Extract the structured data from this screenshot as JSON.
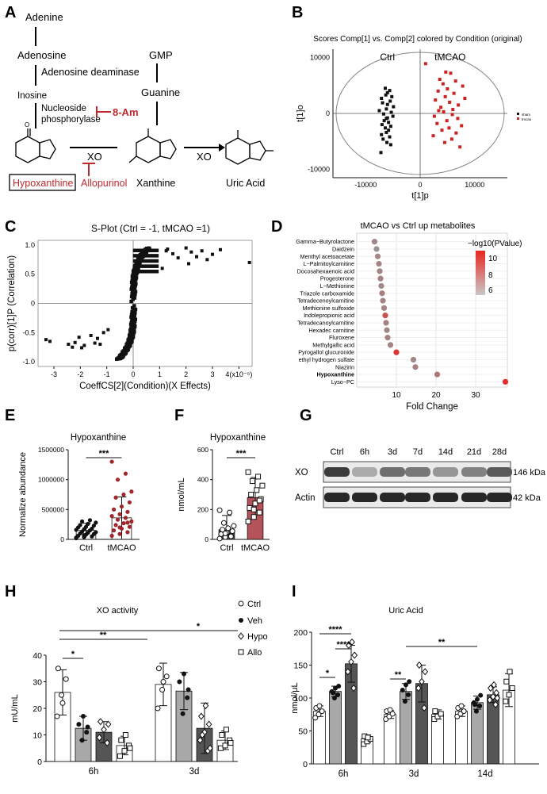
{
  "panel_labels": {
    "a": "A",
    "b": "B",
    "c": "C",
    "d": "D",
    "e": "E",
    "f": "F",
    "g": "G",
    "h": "H",
    "i": "I"
  },
  "pathway": {
    "adenine": "Adenine",
    "adenosine": "Adenosine",
    "adenosine_deaminase": "Adenosine deaminase",
    "gmp": "GMP",
    "inosine": "Inosine",
    "nucleoside": "Nucleoside",
    "phosphorylase": "phosphorylase",
    "guanine": "Guanine",
    "inhibitor_8am": "8-Am",
    "xo1": "XO",
    "xo2": "XO",
    "hypoxanthine": "Hypoxanthine",
    "allopurinol": "Allopurinol",
    "xanthine": "Xanthine",
    "uric_acid": "Uric Acid",
    "accent_color": "#c0282d"
  },
  "colors": {
    "ctrl": "#111111",
    "tmcao": "#cc2222",
    "bar_dark": "#555555",
    "bar_tmcao": "#b5525a",
    "bar_mid": "#a8a8a8",
    "bar_darker": "#6a6a6a"
  },
  "chart_data": [
    {
      "id": "B",
      "type": "scatter",
      "title": "Scores Comp[1] vs. Comp[2] colored by Condition (original)",
      "xlabel": "t[1]p",
      "ylabel": "t[1]o",
      "xlim": [
        -16000,
        16000
      ],
      "ylim": [
        -11500,
        11500
      ],
      "xticks": [
        "-10000",
        "0",
        "10000"
      ],
      "yticks": [
        "10000",
        "0",
        "-10000"
      ],
      "group_labels": [
        "Ctrl",
        "tMCAO"
      ],
      "legend": [
        "sham",
        "tmcao"
      ],
      "series": [
        {
          "name": "Ctrl",
          "color": "#111111",
          "x": [
            -6400,
            -5600,
            -6000,
            -6300,
            -5200,
            -7100,
            -5500,
            -6900,
            -6000,
            -4900,
            -6200,
            -7500,
            -5300,
            -6700,
            -5000,
            -6200,
            -6600,
            -5800,
            -7000,
            -5400,
            -6400,
            -5800,
            -6200,
            -7100,
            -5600,
            -6800,
            -6100,
            -5400,
            -7200,
            -6000
          ],
          "y": [
            4500,
            4100,
            3700,
            3300,
            3000,
            2700,
            2200,
            1900,
            1600,
            1200,
            800,
            500,
            200,
            -100,
            -500,
            -900,
            -1300,
            -1600,
            -2000,
            -2300,
            -2600,
            -3000,
            -3400,
            -3800,
            -4200,
            -4600,
            -5200,
            -5600,
            -7000,
            -800
          ]
        },
        {
          "name": "tMCAO",
          "color": "#cc2222",
          "x": [
            1000,
            4700,
            5600,
            3600,
            6500,
            4200,
            7800,
            5000,
            3300,
            6200,
            4600,
            8200,
            2800,
            5400,
            7000,
            3800,
            6000,
            4300,
            5900,
            2600,
            6900,
            4900,
            3100,
            7600,
            5300,
            4000,
            6600,
            2400,
            5800,
            4500,
            7300,
            3400
          ],
          "y": [
            8900,
            7400,
            7200,
            6100,
            5800,
            5300,
            4900,
            4400,
            4000,
            3600,
            3000,
            2700,
            2400,
            2000,
            1500,
            1100,
            700,
            300,
            -200,
            -500,
            -900,
            -1300,
            -1800,
            -2200,
            -2600,
            -3000,
            -3500,
            -4000,
            -4600,
            -5200,
            -6000,
            500
          ]
        }
      ]
    },
    {
      "id": "C",
      "type": "scatter",
      "title": "S-Plot (Ctrl = -1, tMCAO =1)",
      "xlabel": "CoeffCS[2](Condition)(X Effects)",
      "ylabel": "p(corr)[1]P (Correlation)",
      "xlim": [
        -3.6,
        4.5
      ],
      "ylim": [
        -1.08,
        1.08
      ],
      "xticks": [
        "-3",
        "-2",
        "-1",
        "0",
        "1",
        "2",
        "3",
        "4(x10⁻⁵)"
      ],
      "yticks": [
        "1.0",
        "0.5",
        "0",
        "-0.5",
        "-1.0"
      ],
      "outliers_x": [
        -3.3,
        -3.15,
        -2.45,
        -2.3,
        -2.2,
        -2.05,
        -1.95,
        -1.85,
        -1.6,
        -1.45,
        -1.35,
        -1.25,
        -1.12,
        -0.95,
        1.3,
        1.5,
        1.7,
        2.0,
        2.2,
        2.4,
        2.6,
        2.8,
        3.0,
        3.3,
        4.4,
        1.1,
        2.1,
        1.25
      ],
      "outliers_y": [
        -0.62,
        -0.65,
        -0.7,
        -0.75,
        -0.67,
        -0.58,
        -0.76,
        -0.72,
        -0.55,
        -0.68,
        -0.6,
        -0.7,
        -0.5,
        -0.45,
        0.93,
        0.85,
        0.78,
        0.95,
        0.88,
        0.8,
        0.9,
        0.75,
        0.84,
        0.92,
        0.7,
        0.6,
        0.68,
        0.9
      ]
    },
    {
      "id": "D",
      "type": "scatter",
      "title": "tMCAO vs Ctrl up metabolites",
      "xlabel": "Fold Change",
      "xlim": [
        0,
        38
      ],
      "xticks": [
        "10",
        "20",
        "30"
      ],
      "legend_title": "−log10(PValue)",
      "legend_ticks": [
        "10",
        "8",
        "6"
      ],
      "categories": [
        "Gamma−Butyrolactone",
        "Daidzein",
        "Menthyl acetoacetate",
        "L−Palmitoylcarnitine",
        "Docosahexaenoic acid",
        "Progesterone",
        "L−Methionine",
        "Triazole carboxamide",
        "Tetradecenoylcarnitine",
        "Methionine sulfoxide",
        "Indolepropionic acid",
        "Tetradecanoylcarnitine",
        "Hexadec carnitine",
        "Fluroxene",
        "Methylgallic acid",
        "Pyrogallol glucuronide",
        "ethyl hydrogen sulfate",
        "Niazirin",
        "Hypoxanthine",
        "Lyso−PC"
      ],
      "fold_change": [
        4.5,
        5.0,
        5.3,
        5.6,
        5.8,
        6.0,
        6.2,
        6.4,
        6.6,
        6.9,
        7.2,
        7.4,
        7.6,
        7.8,
        8.5,
        10.0,
        14.3,
        14.8,
        20.3,
        37.5
      ],
      "neg_log10_p": [
        5.8,
        5.2,
        5.8,
        6.0,
        5.9,
        6.1,
        5.7,
        6.2,
        6.0,
        5.9,
        8.5,
        6.0,
        5.8,
        6.1,
        6.0,
        10.2,
        5.8,
        6.1,
        6.8,
        10.5
      ],
      "bold_category": "Hypoxanthine"
    },
    {
      "id": "E",
      "type": "bar",
      "title": "Hypoxanthine",
      "ylabel": "Normalize abundance",
      "categories": [
        "Ctrl",
        "tMCAO"
      ],
      "ylim": [
        0,
        1500000
      ],
      "yticks": [
        "0",
        "500000",
        "1000000",
        "1500000"
      ],
      "means": [
        150000,
        360000
      ],
      "sd": [
        120000,
        350000
      ],
      "significance": "***",
      "ctrl_points": [
        20000,
        40000,
        50000,
        60000,
        80000,
        90000,
        100000,
        110000,
        120000,
        130000,
        150000,
        160000,
        170000,
        180000,
        200000,
        210000,
        230000,
        240000,
        260000,
        280000,
        300000,
        320000,
        30000,
        70000
      ],
      "tmcao_points": [
        60000,
        90000,
        120000,
        150000,
        180000,
        210000,
        240000,
        270000,
        300000,
        330000,
        360000,
        390000,
        420000,
        460000,
        500000,
        550000,
        620000,
        700000,
        750000,
        800000,
        1000000,
        1100000,
        1300000,
        200000,
        280000
      ]
    },
    {
      "id": "F",
      "type": "bar",
      "title": "Hypoxanthine",
      "ylabel": "nmol/mL",
      "categories": [
        "Ctrl",
        "tMCAO"
      ],
      "ylim": [
        0,
        600
      ],
      "yticks": [
        "0",
        "200",
        "400",
        "600"
      ],
      "means": [
        65,
        280
      ],
      "sd": [
        95,
        135
      ],
      "significance": "***",
      "ctrl_points": [
        5,
        15,
        25,
        35,
        45,
        55,
        65,
        75,
        90,
        110,
        180,
        195,
        40,
        20
      ],
      "tmcao_points": [
        120,
        150,
        180,
        210,
        240,
        270,
        300,
        330,
        360,
        390,
        420,
        450,
        200,
        260
      ]
    },
    {
      "id": "G",
      "type": "blot",
      "lanes": [
        "Ctrl",
        "6h",
        "3d",
        "7d",
        "14d",
        "21d",
        "28d"
      ],
      "rows": [
        {
          "label": "XO",
          "kda": "146 kDa",
          "intensity": [
            0.85,
            0.3,
            0.6,
            0.55,
            0.4,
            0.5,
            0.7
          ]
        },
        {
          "label": "Actin",
          "kda": "42 kDa",
          "intensity": [
            0.95,
            0.95,
            0.95,
            0.95,
            0.95,
            0.95,
            0.95
          ]
        }
      ]
    },
    {
      "id": "H",
      "type": "bar",
      "title": "XO activity",
      "ylabel": "mU/mL",
      "categories": [
        "6h",
        "3d"
      ],
      "ylim": [
        0,
        40
      ],
      "yticks": [
        "0",
        "10",
        "20",
        "30",
        "40"
      ],
      "legend": [
        "Ctrl",
        "Veh",
        "Hypo",
        "Allo"
      ],
      "series": [
        {
          "name": "Ctrl",
          "color": "#ffffff",
          "means": [
            26,
            29
          ],
          "sd": [
            8.5,
            8
          ],
          "points": [
            [
              17,
              25,
              31,
              35,
              22
            ],
            [
              20,
              27,
              32,
              35,
              30
            ]
          ],
          "marker": "circle-open"
        },
        {
          "name": "Veh",
          "color": "#a8a8a8",
          "means": [
            12.5,
            26.5
          ],
          "sd": [
            4.5,
            7
          ],
          "points": [
            [
              8,
              11,
              14,
              17,
              13
            ],
            [
              18,
              24,
              30,
              33,
              27
            ]
          ],
          "marker": "circle-filled"
        },
        {
          "name": "Hypo",
          "color": "#555555",
          "means": [
            11,
            12.5
          ],
          "sd": [
            4,
            9.5
          ],
          "points": [
            [
              7,
              9,
              12,
              14,
              15
            ],
            [
              4,
              8,
              11,
              14,
              17,
              21,
              5,
              10
            ]
          ],
          "marker": "diamond-open"
        },
        {
          "name": "Allo",
          "color": "#ffffff",
          "means": [
            6,
            8
          ],
          "sd": [
            3.5,
            3.5
          ],
          "points": [
            [
              2,
              4,
              6,
              8,
              10,
              5
            ],
            [
              5,
              6,
              8,
              10,
              12,
              7
            ]
          ],
          "marker": "square-open"
        }
      ],
      "significance": [
        {
          "label": "*"
        },
        {
          "label": "**"
        },
        {
          "label": "*"
        }
      ]
    },
    {
      "id": "I",
      "type": "bar",
      "title": "Uric Acid",
      "ylabel": "nmol/μL",
      "categories": [
        "6h",
        "3d",
        "14d"
      ],
      "ylim": [
        0,
        200
      ],
      "yticks": [
        "0",
        "50",
        "100",
        "150",
        "200"
      ],
      "series": [
        {
          "name": "Ctrl",
          "color": "#ffffff",
          "means": [
            80,
            75,
            80
          ],
          "sd": [
            8,
            6,
            8
          ],
          "points": [
            [
              70,
              75,
              80,
              85,
              88
            ],
            [
              68,
              72,
              76,
              80,
              82
            ],
            [
              72,
              76,
              80,
              85,
              88
            ]
          ],
          "marker": "circle-open"
        },
        {
          "name": "Veh",
          "color": "#a8a8a8",
          "means": [
            110,
            110,
            93
          ],
          "sd": [
            8,
            12,
            10
          ],
          "points": [
            [
              100,
              105,
              110,
              115,
              118,
              108
            ],
            [
              95,
              105,
              112,
              120,
              125
            ],
            [
              80,
              88,
              93,
              98,
              104,
              90
            ]
          ],
          "marker": "circle-filled"
        },
        {
          "name": "Hypo",
          "color": "#555555",
          "means": [
            152,
            122,
            105
          ],
          "sd": [
            28,
            28,
            12
          ],
          "points": [
            [
              115,
              140,
              155,
              165,
              180,
              185
            ],
            [
              85,
              115,
              125,
              140,
              150
            ],
            [
              90,
              97,
              102,
              108,
              115,
              120,
              100
            ]
          ],
          "marker": "diamond-open"
        },
        {
          "name": "Allo",
          "color": "#ffffff",
          "means": [
            38,
            75,
            112
          ],
          "sd": [
            6,
            7,
            25
          ],
          "points": [
            [
              30,
              34,
              38,
              42,
              40
            ],
            [
              68,
              72,
              76,
              80
            ],
            [
              95,
              105,
              115,
              125,
              140
            ]
          ],
          "marker": "square-open"
        }
      ],
      "significance": [
        {
          "label": "*"
        },
        {
          "label": "****"
        },
        {
          "label": "****"
        },
        {
          "label": "**"
        },
        {
          "label": "**"
        }
      ]
    }
  ]
}
